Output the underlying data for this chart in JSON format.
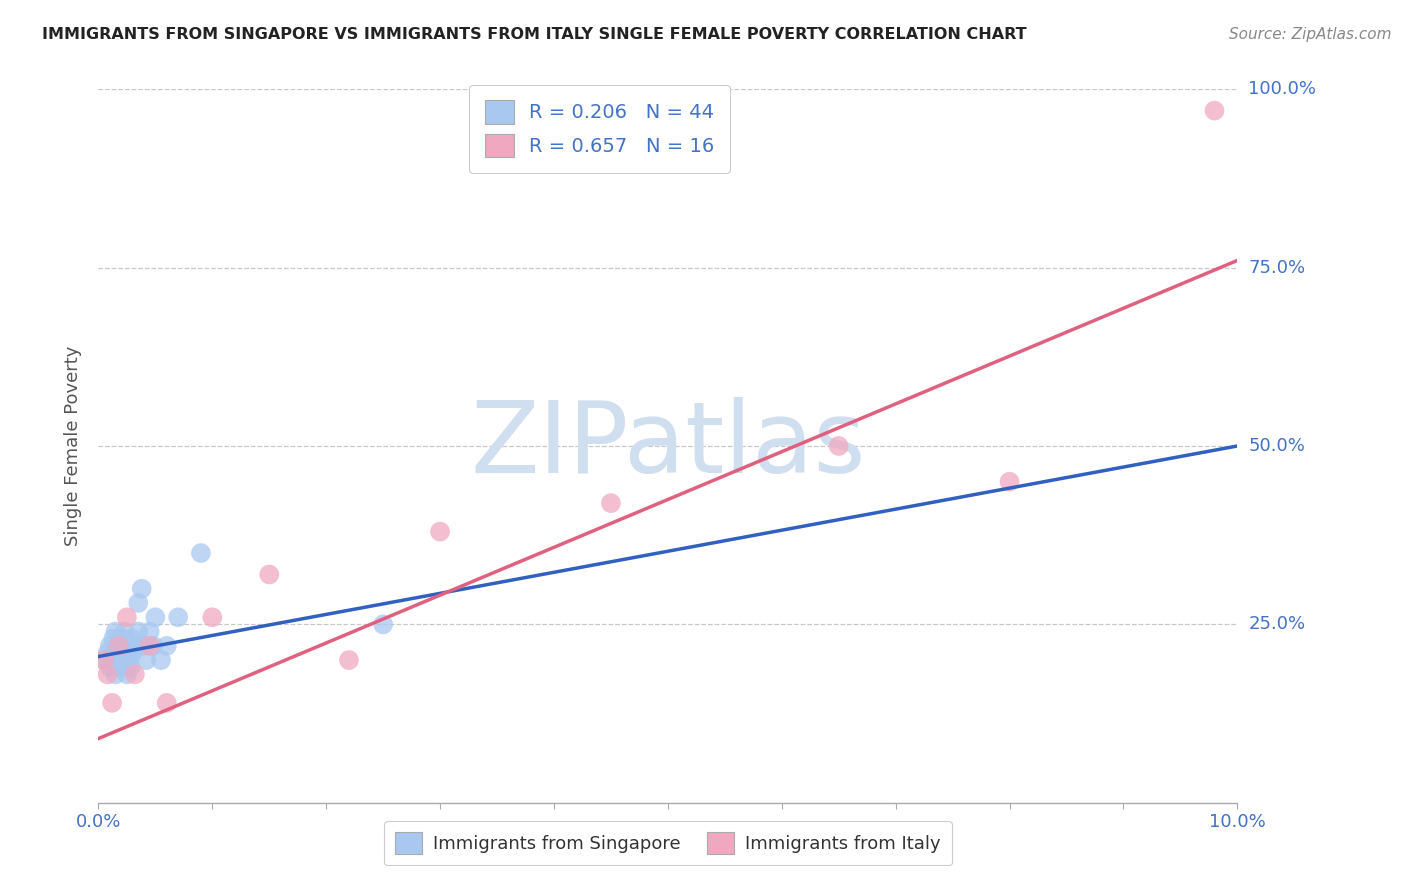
{
  "title": "IMMIGRANTS FROM SINGAPORE VS IMMIGRANTS FROM ITALY SINGLE FEMALE POVERTY CORRELATION CHART",
  "source": "Source: ZipAtlas.com",
  "ylabel": "Single Female Poverty",
  "xlim": [
    0.0,
    10.0
  ],
  "ylim": [
    0.0,
    100.0
  ],
  "legend_singapore": "R = 0.206   N = 44",
  "legend_italy": "R = 0.657   N = 16",
  "color_singapore": "#a8c8f0",
  "color_italy": "#f0a8c0",
  "color_singapore_line": "#3060c0",
  "color_italy_line": "#e06080",
  "watermark_color": "#d0dff0",
  "background_color": "#ffffff",
  "grid_color": "#c8c8c8",
  "tick_color": "#4472c4",
  "ylabel_color": "#555555",
  "sg_x": [
    0.05,
    0.08,
    0.1,
    0.1,
    0.12,
    0.13,
    0.14,
    0.15,
    0.15,
    0.16,
    0.17,
    0.18,
    0.18,
    0.19,
    0.2,
    0.2,
    0.2,
    0.21,
    0.22,
    0.22,
    0.23,
    0.24,
    0.25,
    0.25,
    0.26,
    0.27,
    0.28,
    0.28,
    0.3,
    0.3,
    0.32,
    0.35,
    0.35,
    0.38,
    0.4,
    0.42,
    0.45,
    0.48,
    0.5,
    0.55,
    0.6,
    0.7,
    0.9,
    2.5
  ],
  "sg_y": [
    20,
    21,
    19,
    22,
    20,
    23,
    21,
    18,
    24,
    20,
    22,
    19,
    21,
    23,
    20,
    22,
    19,
    21,
    20,
    23,
    24,
    20,
    22,
    18,
    21,
    20,
    22,
    19,
    21,
    23,
    22,
    28,
    24,
    30,
    22,
    20,
    24,
    22,
    26,
    20,
    22,
    26,
    35,
    25
  ],
  "it_x": [
    0.05,
    0.08,
    0.12,
    0.18,
    0.25,
    0.32,
    0.45,
    0.6,
    1.0,
    1.5,
    2.2,
    3.0,
    4.5,
    6.5,
    8.0,
    9.8
  ],
  "it_y": [
    20,
    18,
    14,
    22,
    26,
    18,
    22,
    14,
    26,
    32,
    20,
    38,
    42,
    50,
    45,
    97
  ],
  "sg_line_x0": 0.0,
  "sg_line_y0": 20.5,
  "sg_line_x1": 10.0,
  "sg_line_y1": 50.0,
  "it_line_x0": 0.0,
  "it_line_y0": 9.0,
  "it_line_x1": 10.0,
  "it_line_y1": 76.0
}
